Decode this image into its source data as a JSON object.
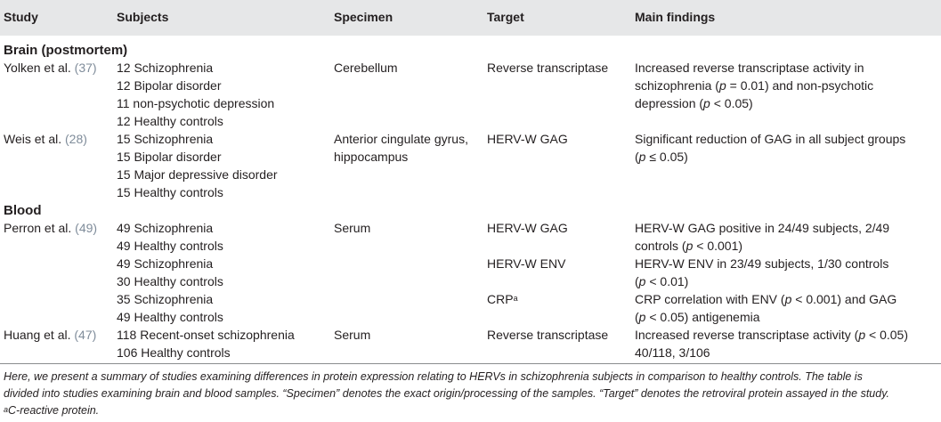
{
  "headers": {
    "study": "Study",
    "subjects": "Subjects",
    "specimen": "Specimen",
    "target": "Target",
    "findings": "Main findings"
  },
  "sections": {
    "brain": "Brain (postmortem)",
    "blood": "Blood"
  },
  "rows": {
    "yolken": {
      "study": "Yolken et al.",
      "ref": "(37)",
      "subjects": [
        "12 Schizophrenia",
        "12 Bipolar disorder",
        "11 non-psychotic depression",
        "12 Healthy controls"
      ],
      "specimen": "Cerebellum",
      "target": "Reverse transcriptase",
      "findings": [
        "Increased reverse transcriptase activity in",
        "schizophrenia (",
        "p",
        " = 0.01) and non-psychotic",
        "depression (",
        "p",
        " < 0.05)"
      ]
    },
    "weis": {
      "study": "Weis et al.",
      "ref": "(28)",
      "subjects": [
        "15 Schizophrenia",
        "15 Bipolar disorder",
        "15 Major depressive disorder",
        "15 Healthy controls"
      ],
      "specimen": [
        "Anterior cingulate gyrus,",
        "hippocampus"
      ],
      "target": "HERV-W GAG",
      "findings": [
        "Significant reduction of GAG in all subject groups",
        "(",
        "p",
        " ≤ 0.05)"
      ]
    },
    "perron": {
      "study": "Perron et al.",
      "ref": "(49)",
      "subjects": [
        "49 Schizophrenia",
        "49 Healthy controls",
        "49 Schizophrenia",
        "30 Healthy controls",
        "35 Schizophrenia",
        "49 Healthy controls"
      ],
      "specimen": "Serum",
      "targets": [
        "HERV-W GAG",
        "HERV-W ENV",
        "CRP",
        "a"
      ],
      "findings": [
        "HERV-W GAG positive in 24/49 subjects, 2/49",
        "controls (",
        "p",
        " < 0.001)",
        "HERV-W ENV in 23/49 subjects, 1/30 controls",
        "(",
        "p",
        " < 0.01)",
        "CRP correlation with ENV (",
        "p",
        " < 0.001) and GAG",
        "(",
        "p",
        " < 0.05) antigenemia"
      ]
    },
    "huang": {
      "study": "Huang et al.",
      "ref": "(47)",
      "subjects": [
        "118 Recent-onset schizophrenia",
        "106 Healthy controls"
      ],
      "specimen": "Serum",
      "target": "Reverse transcriptase",
      "findings": [
        "Increased reverse transcriptase activity (",
        "p",
        " < 0.05)",
        "40/118, 3/106"
      ]
    }
  },
  "footnote": {
    "line1": "Here, we present a summary of studies examining differences in protein expression relating to HERVs in schizophrenia subjects in comparison to healthy controls. The table is",
    "line2": "divided into studies examining brain and blood samples. “Specimen” denotes the exact origin/processing of the samples. “Target” denotes the retroviral protein assayed in the study.",
    "mark": "a",
    "line3": "C-reactive protein."
  }
}
